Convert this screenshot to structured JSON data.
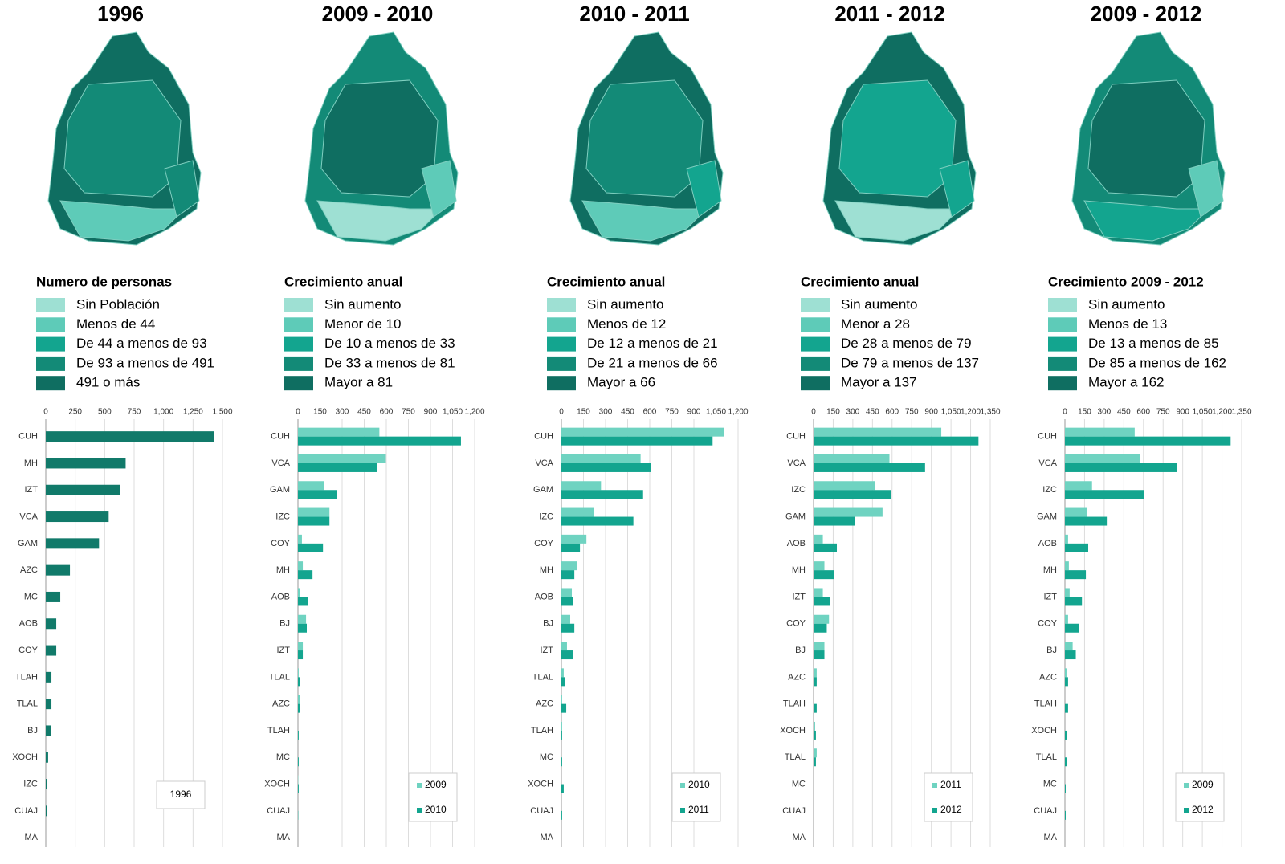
{
  "chart_data": [
    {
      "type": "bar",
      "title": "1996",
      "legend_title": "Numero de personas",
      "legend": [
        {
          "label": "Sin Población",
          "color": "#9ee0d3"
        },
        {
          "label": "Menos de 44",
          "color": "#5ecbb8"
        },
        {
          "label": "De 44 a menos de 93",
          "color": "#13a58f"
        },
        {
          "label": "De 93 a menos de 491",
          "color": "#138a77"
        },
        {
          "label": "491 o más",
          "color": "#0f6e61"
        }
      ],
      "categories": [
        "CUH",
        "MH",
        "IZT",
        "VCA",
        "GAM",
        "AZC",
        "MC",
        "AOB",
        "COY",
        "TLAH",
        "TLAL",
        "BJ",
        "XOCH",
        "IZC",
        "CUAJ",
        "MA"
      ],
      "series": [
        {
          "name": "1996",
          "color": "#117a6a",
          "values": [
            1425,
            678,
            630,
            534,
            452,
            205,
            123,
            89,
            89,
            48,
            48,
            41,
            20,
            7,
            7,
            0
          ]
        }
      ],
      "xlim": [
        0,
        1500
      ],
      "xticks": [
        0,
        250,
        500,
        750,
        {
          "value": 1000,
          "label": "1,000"
        },
        {
          "value": 1250,
          "label": "1,250"
        },
        {
          "value": 1500,
          "label": "1,500"
        }
      ],
      "grid": true
    },
    {
      "type": "bar",
      "title": "2009 - 2010",
      "legend_title": "Crecimiento anual",
      "legend": [
        {
          "label": "Sin aumento",
          "color": "#9ee0d3"
        },
        {
          "label": "Menor de 10",
          "color": "#5ecbb8"
        },
        {
          "label": "De 10 a menos de 33",
          "color": "#13a58f"
        },
        {
          "label": "De 33 a menos de 81",
          "color": "#138a77"
        },
        {
          "label": "Mayor a 81",
          "color": "#0f6e61"
        }
      ],
      "categories": [
        "CUH",
        "VCA",
        "GAM",
        "IZC",
        "COY",
        "MH",
        "AOB",
        "BJ",
        "IZT",
        "TLAL",
        "AZC",
        "TLAH",
        "MC",
        "XOCH",
        "CUAJ",
        "MA"
      ],
      "series": [
        {
          "name": "2009",
          "color": "#6fd3c1",
          "values": [
            553,
            597,
            175,
            214,
            27,
            33,
            16,
            55,
            33,
            5,
            16,
            0,
            0,
            2,
            0,
            0
          ]
        },
        {
          "name": "2010",
          "color": "#13a58f",
          "values": [
            1107,
            537,
            263,
            214,
            170,
            99,
            66,
            60,
            33,
            16,
            11,
            5,
            5,
            5,
            2,
            0
          ]
        }
      ],
      "xlim": [
        0,
        1200
      ],
      "xticks": [
        0,
        150,
        300,
        450,
        600,
        750,
        900,
        {
          "value": 1050,
          "label": "1,050"
        },
        {
          "value": 1200,
          "label": "1,200"
        }
      ],
      "grid": true
    },
    {
      "type": "bar",
      "title": "2010 - 2011",
      "legend_title": "Crecimiento anual",
      "legend": [
        {
          "label": "Sin aumento",
          "color": "#9ee0d3"
        },
        {
          "label": "Menos de 12",
          "color": "#5ecbb8"
        },
        {
          "label": "De 12 a menos de 21",
          "color": "#13a58f"
        },
        {
          "label": "De 21 a menos de 66",
          "color": "#138a77"
        },
        {
          "label": "Mayor a 66",
          "color": "#0f6e61"
        }
      ],
      "categories": [
        "CUH",
        "VCA",
        "GAM",
        "IZC",
        "COY",
        "MH",
        "AOB",
        "BJ",
        "IZT",
        "TLAL",
        "AZC",
        "TLAH",
        "MC",
        "XOCH",
        "CUAJ",
        "MA"
      ],
      "series": [
        {
          "name": "2010",
          "color": "#6fd3c1",
          "values": [
            1104,
            538,
            269,
            220,
            170,
            104,
            71,
            60,
            38,
            16,
            5,
            5,
            0,
            0,
            0,
            0
          ]
        },
        {
          "name": "2011",
          "color": "#13a58f",
          "values": [
            1027,
            610,
            555,
            489,
            126,
            88,
            77,
            88,
            77,
            27,
            33,
            5,
            5,
            16,
            5,
            0
          ]
        }
      ],
      "xlim": [
        0,
        1200
      ],
      "xticks": [
        0,
        150,
        300,
        450,
        600,
        750,
        900,
        {
          "value": 1050,
          "label": "1,050"
        },
        {
          "value": 1200,
          "label": "1,200"
        }
      ],
      "grid": true
    },
    {
      "type": "bar",
      "title": "2011 - 2012",
      "legend_title": "Crecimiento anual",
      "legend": [
        {
          "label": "Sin aumento",
          "color": "#9ee0d3"
        },
        {
          "label": "Menor a 28",
          "color": "#5ecbb8"
        },
        {
          "label": "De 28 a menos de 79",
          "color": "#13a58f"
        },
        {
          "label": "De 79 a menos de 137",
          "color": "#138a77"
        },
        {
          "label": "Mayor a 137",
          "color": "#0f6e61"
        }
      ],
      "categories": [
        "CUH",
        "VCA",
        "IZC",
        "GAM",
        "AOB",
        "MH",
        "IZT",
        "COY",
        "BJ",
        "AZC",
        "TLAH",
        "XOCH",
        "TLAL",
        "MC",
        "CUAJ",
        "MA"
      ],
      "series": [
        {
          "name": "2011",
          "color": "#6fd3c1",
          "values": [
            976,
            580,
            467,
            527,
            71,
            83,
            71,
            118,
            83,
            24,
            0,
            12,
            24,
            6,
            0,
            0
          ]
        },
        {
          "name": "2012",
          "color": "#13a58f",
          "values": [
            1260,
            852,
            592,
            314,
            178,
            154,
            124,
            101,
            83,
            24,
            24,
            18,
            18,
            0,
            0,
            0
          ]
        }
      ],
      "xlim": [
        0,
        1350
      ],
      "xticks": [
        0,
        150,
        300,
        450,
        600,
        750,
        900,
        {
          "value": 1050,
          "label": "1,050"
        },
        {
          "value": 1200,
          "label": "1,200"
        },
        {
          "value": 1350,
          "label": "1,350"
        }
      ],
      "grid": true
    },
    {
      "type": "bar",
      "title": "2009 - 2012",
      "legend_title": "Crecimiento 2009 - 2012",
      "legend": [
        {
          "label": "Sin aumento",
          "color": "#9ee0d3"
        },
        {
          "label": "Menos de 13",
          "color": "#5ecbb8"
        },
        {
          "label": "De 13 a menos de 85",
          "color": "#13a58f"
        },
        {
          "label": "De 85 a menos de 162",
          "color": "#138a77"
        },
        {
          "label": "Mayor a 162",
          "color": "#0f6e61"
        }
      ],
      "categories": [
        "CUH",
        "VCA",
        "IZC",
        "GAM",
        "AOB",
        "MH",
        "IZT",
        "COY",
        "BJ",
        "AZC",
        "TLAH",
        "XOCH",
        "TLAL",
        "MC",
        "CUAJ",
        "MA"
      ],
      "series": [
        {
          "name": "2009",
          "color": "#6fd3c1",
          "values": [
            533,
            574,
            207,
            166,
            24,
            30,
            36,
            24,
            59,
            12,
            0,
            0,
            0,
            0,
            0,
            0
          ]
        },
        {
          "name": "2012",
          "color": "#13a58f",
          "values": [
            1266,
            858,
            604,
            320,
            178,
            160,
            130,
            107,
            83,
            24,
            24,
            18,
            18,
            6,
            6,
            0
          ]
        }
      ],
      "xlim": [
        0,
        1350
      ],
      "xticks": [
        0,
        150,
        300,
        450,
        600,
        750,
        900,
        {
          "value": 1050,
          "label": "1,050"
        },
        {
          "value": 1200,
          "label": "1,200"
        },
        {
          "value": 1350,
          "label": "1,350"
        }
      ],
      "grid": true
    }
  ]
}
